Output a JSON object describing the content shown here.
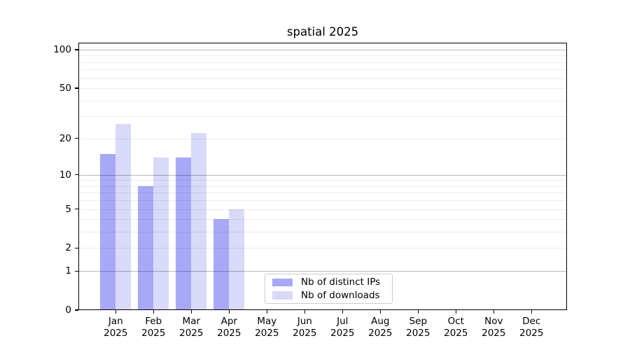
{
  "chart_data": {
    "type": "bar",
    "title": "spatial 2025",
    "categories": [
      "Jan",
      "Feb",
      "Mar",
      "Apr",
      "May",
      "Jun",
      "Jul",
      "Aug",
      "Sep",
      "Oct",
      "Nov",
      "Dec"
    ],
    "year_label": "2025",
    "series": [
      {
        "name": "Nb of distinct IPs",
        "color": "#a8a8f8",
        "values": [
          15,
          8,
          14,
          4,
          0,
          0,
          0,
          0,
          0,
          0,
          0,
          0
        ]
      },
      {
        "name": "Nb of downloads",
        "color": "#d9d9f9",
        "values": [
          26,
          14,
          22,
          5,
          0,
          0,
          0,
          0,
          0,
          0,
          0,
          0
        ]
      }
    ],
    "y_axis": {
      "scale": "log1p",
      "tick_values": [
        0,
        1,
        2,
        5,
        10,
        20,
        50,
        100
      ],
      "major_gridlines": [
        1,
        10,
        100
      ],
      "minor_gridlines": [
        2,
        3,
        4,
        5,
        6,
        7,
        8,
        9,
        20,
        30,
        40,
        50,
        60,
        70,
        80,
        90
      ],
      "top_value": 112
    },
    "legend": {
      "position": "lower center",
      "items": [
        "Nb of distinct IPs",
        "Nb of downloads"
      ]
    },
    "grid": true,
    "xlabel": "",
    "ylabel": ""
  }
}
